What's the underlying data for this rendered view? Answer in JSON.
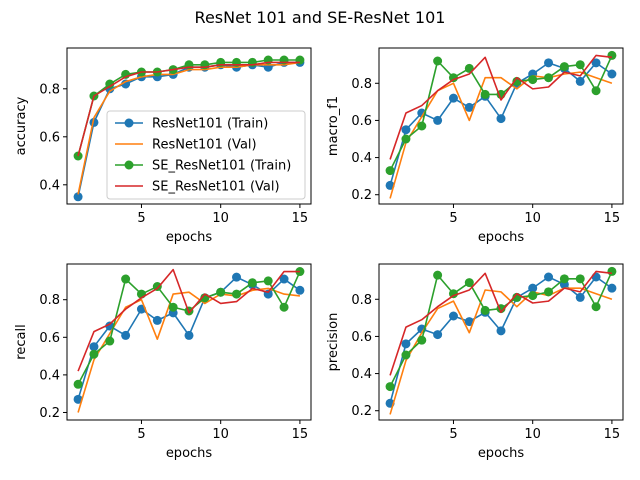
{
  "figure_title": "ResNet 101 and SE-ResNet 101",
  "colors": {
    "resnet_train": "#1f77b4",
    "resnet_val": "#ff7f0e",
    "se_train": "#2ca02c",
    "se_val": "#d62728"
  },
  "chart_data": [
    {
      "type": "line",
      "title": "",
      "xlabel": "epochs",
      "ylabel": "accuracy",
      "xlim": [
        0.3,
        15.7
      ],
      "ylim": [
        0.32,
        0.97
      ],
      "xticks": [
        5,
        10,
        15
      ],
      "yticks": [
        0.4,
        0.6,
        0.8
      ],
      "ytick_labels": [
        "0.4",
        "0.6",
        "0.8"
      ],
      "grid": false,
      "legend": "lower-right",
      "x": [
        1,
        2,
        3,
        4,
        5,
        6,
        7,
        8,
        9,
        10,
        11,
        12,
        13,
        14,
        15
      ],
      "series": [
        {
          "name": "ResNet101 (Train)",
          "color": "#1f77b4",
          "marker": "circle",
          "values": [
            0.35,
            0.66,
            0.8,
            0.82,
            0.85,
            0.85,
            0.86,
            0.89,
            0.89,
            0.9,
            0.89,
            0.9,
            0.89,
            0.91,
            0.91
          ]
        },
        {
          "name": "ResNet101 (Val)",
          "color": "#ff7f0e",
          "marker": "none",
          "values": [
            0.36,
            0.68,
            0.79,
            0.83,
            0.85,
            0.86,
            0.86,
            0.88,
            0.88,
            0.89,
            0.89,
            0.9,
            0.9,
            0.9,
            0.91
          ]
        },
        {
          "name": "SE_ResNet101 (Train)",
          "color": "#2ca02c",
          "marker": "circle",
          "values": [
            0.52,
            0.77,
            0.82,
            0.86,
            0.87,
            0.87,
            0.88,
            0.9,
            0.9,
            0.91,
            0.91,
            0.91,
            0.92,
            0.92,
            0.92
          ]
        },
        {
          "name": "SE_ResNet101 (Val)",
          "color": "#d62728",
          "marker": "none",
          "values": [
            0.52,
            0.77,
            0.81,
            0.85,
            0.87,
            0.87,
            0.88,
            0.89,
            0.89,
            0.9,
            0.9,
            0.9,
            0.91,
            0.91,
            0.91
          ]
        }
      ]
    },
    {
      "type": "line",
      "title": "",
      "xlabel": "epochs",
      "ylabel": "macro_f1",
      "xlim": [
        0.3,
        15.7
      ],
      "ylim": [
        0.15,
        0.99
      ],
      "xticks": [
        5,
        10,
        15
      ],
      "yticks": [
        0.2,
        0.4,
        0.6,
        0.8
      ],
      "ytick_labels": [
        "0.2",
        "0.4",
        "0.6",
        "0.8"
      ],
      "grid": false,
      "legend": "",
      "x": [
        1,
        2,
        3,
        4,
        5,
        6,
        7,
        8,
        9,
        10,
        11,
        12,
        13,
        14,
        15
      ],
      "series": [
        {
          "name": "ResNet101 (Train)",
          "color": "#1f77b4",
          "marker": "circle",
          "values": [
            0.25,
            0.55,
            0.64,
            0.6,
            0.72,
            0.67,
            0.73,
            0.61,
            0.8,
            0.85,
            0.91,
            0.88,
            0.81,
            0.91,
            0.85
          ]
        },
        {
          "name": "ResNet101 (Val)",
          "color": "#ff7f0e",
          "marker": "none",
          "values": [
            0.18,
            0.48,
            0.62,
            0.76,
            0.8,
            0.6,
            0.83,
            0.83,
            0.77,
            0.84,
            0.83,
            0.85,
            0.86,
            0.83,
            0.8
          ]
        },
        {
          "name": "SE_ResNet101 (Train)",
          "color": "#2ca02c",
          "marker": "circle",
          "values": [
            0.33,
            0.5,
            0.57,
            0.92,
            0.83,
            0.88,
            0.74,
            0.74,
            0.81,
            0.82,
            0.83,
            0.89,
            0.9,
            0.76,
            0.95
          ]
        },
        {
          "name": "SE_ResNet101 (Val)",
          "color": "#d62728",
          "marker": "none",
          "values": [
            0.39,
            0.64,
            0.68,
            0.76,
            0.82,
            0.85,
            0.94,
            0.71,
            0.83,
            0.77,
            0.78,
            0.86,
            0.84,
            0.95,
            0.94
          ]
        }
      ]
    },
    {
      "type": "line",
      "title": "",
      "xlabel": "epochs",
      "ylabel": "recall",
      "xlim": [
        0.3,
        15.7
      ],
      "ylim": [
        0.16,
        0.99
      ],
      "xticks": [
        5,
        10,
        15
      ],
      "yticks": [
        0.2,
        0.4,
        0.6,
        0.8
      ],
      "ytick_labels": [
        "0.2",
        "0.4",
        "0.6",
        "0.8"
      ],
      "grid": false,
      "legend": "",
      "x": [
        1,
        2,
        3,
        4,
        5,
        6,
        7,
        8,
        9,
        10,
        11,
        12,
        13,
        14,
        15
      ],
      "series": [
        {
          "name": "ResNet101 (Train)",
          "color": "#1f77b4",
          "marker": "circle",
          "values": [
            0.27,
            0.55,
            0.66,
            0.61,
            0.75,
            0.69,
            0.73,
            0.61,
            0.81,
            0.84,
            0.92,
            0.88,
            0.83,
            0.91,
            0.85
          ]
        },
        {
          "name": "ResNet101 (Val)",
          "color": "#ff7f0e",
          "marker": "none",
          "values": [
            0.2,
            0.48,
            0.62,
            0.76,
            0.8,
            0.59,
            0.83,
            0.84,
            0.78,
            0.83,
            0.82,
            0.85,
            0.86,
            0.83,
            0.82
          ]
        },
        {
          "name": "SE_ResNet101 (Train)",
          "color": "#2ca02c",
          "marker": "circle",
          "values": [
            0.35,
            0.51,
            0.58,
            0.91,
            0.83,
            0.87,
            0.76,
            0.74,
            0.81,
            0.84,
            0.83,
            0.89,
            0.9,
            0.76,
            0.95
          ]
        },
        {
          "name": "SE_ResNet101 (Val)",
          "color": "#d62728",
          "marker": "none",
          "values": [
            0.42,
            0.63,
            0.67,
            0.75,
            0.81,
            0.86,
            0.96,
            0.73,
            0.83,
            0.78,
            0.79,
            0.86,
            0.84,
            0.95,
            0.95
          ]
        }
      ]
    },
    {
      "type": "line",
      "title": "",
      "xlabel": "epochs",
      "ylabel": "precision",
      "xlim": [
        0.3,
        15.7
      ],
      "ylim": [
        0.15,
        0.99
      ],
      "xticks": [
        5,
        10,
        15
      ],
      "yticks": [
        0.2,
        0.4,
        0.6,
        0.8
      ],
      "ytick_labels": [
        "0.2",
        "0.4",
        "0.6",
        "0.8"
      ],
      "grid": false,
      "legend": "",
      "x": [
        1,
        2,
        3,
        4,
        5,
        6,
        7,
        8,
        9,
        10,
        11,
        12,
        13,
        14,
        15
      ],
      "series": [
        {
          "name": "ResNet101 (Train)",
          "color": "#1f77b4",
          "marker": "circle",
          "values": [
            0.24,
            0.56,
            0.64,
            0.61,
            0.71,
            0.68,
            0.73,
            0.63,
            0.81,
            0.86,
            0.92,
            0.88,
            0.81,
            0.92,
            0.86
          ]
        },
        {
          "name": "ResNet101 (Val)",
          "color": "#ff7f0e",
          "marker": "none",
          "values": [
            0.18,
            0.47,
            0.62,
            0.75,
            0.79,
            0.62,
            0.85,
            0.84,
            0.76,
            0.84,
            0.82,
            0.86,
            0.86,
            0.83,
            0.8
          ]
        },
        {
          "name": "SE_ResNet101 (Train)",
          "color": "#2ca02c",
          "marker": "circle",
          "values": [
            0.33,
            0.5,
            0.58,
            0.93,
            0.83,
            0.89,
            0.74,
            0.75,
            0.81,
            0.82,
            0.84,
            0.91,
            0.91,
            0.76,
            0.95
          ]
        },
        {
          "name": "SE_ResNet101 (Val)",
          "color": "#d62728",
          "marker": "none",
          "values": [
            0.39,
            0.65,
            0.69,
            0.76,
            0.82,
            0.85,
            0.94,
            0.73,
            0.83,
            0.78,
            0.79,
            0.86,
            0.84,
            0.95,
            0.94
          ]
        }
      ]
    }
  ]
}
